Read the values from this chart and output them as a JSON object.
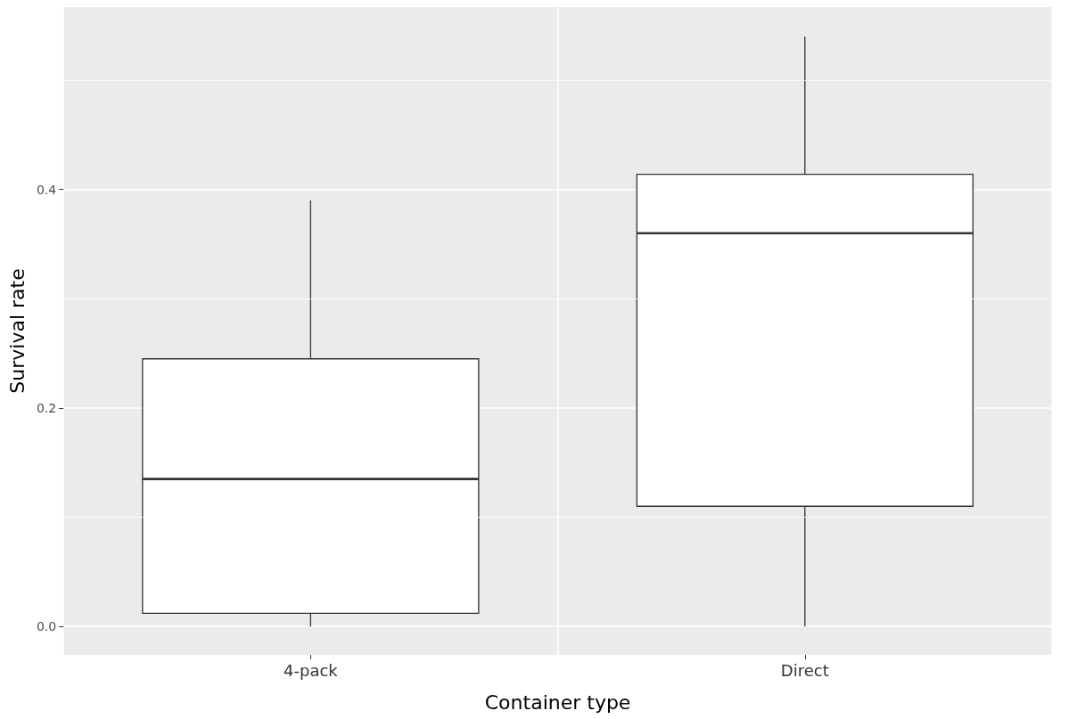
{
  "chart_data": {
    "type": "box",
    "xlabel": "Container type",
    "ylabel": "Survival rate",
    "categories": [
      "4-pack",
      "Direct"
    ],
    "boxes": [
      {
        "low": 0.0,
        "q1": 0.012,
        "median": 0.135,
        "q3": 0.245,
        "high": 0.39
      },
      {
        "low": 0.0,
        "q1": 0.11,
        "median": 0.36,
        "q3": 0.414,
        "high": 0.54
      }
    ],
    "ylim": [
      -0.026,
      0.567
    ],
    "yticks": [
      {
        "value": 0,
        "label": "0.0"
      },
      {
        "value": 0.2,
        "label": "0.2"
      },
      {
        "value": 0.4,
        "label": "0.4"
      }
    ],
    "grid": true
  }
}
